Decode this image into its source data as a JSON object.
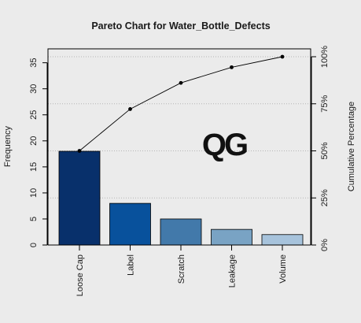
{
  "chart_data": {
    "type": "bar",
    "title": "Pareto Chart for Water_Bottle_Defects",
    "xlabel": "",
    "ylabel": "Frequency",
    "y2label": "Cumulative Percentage",
    "categories": [
      "Loose Cap",
      "Label",
      "Scratch",
      "Leakage",
      "Volume"
    ],
    "values": [
      18,
      8,
      5,
      3,
      2
    ],
    "cumulative_percent": [
      50,
      72.2,
      86.1,
      94.4,
      100
    ],
    "ylim": [
      0,
      37.5
    ],
    "yticks": [
      0,
      5,
      10,
      15,
      20,
      25,
      30,
      35
    ],
    "y2ticks": [
      0,
      25,
      50,
      75,
      100
    ],
    "y2tick_labels": [
      "0%",
      "25%",
      "50%",
      "75%",
      "100%"
    ],
    "grid": "horizontal dotted at right-axis ticks",
    "bar_colors": [
      "#08306b",
      "#08519c",
      "#4279aa",
      "#79a3c4",
      "#a7c3dc"
    ],
    "line_color": "#000000",
    "background": "#ebebeb"
  },
  "watermark": {
    "text": "QG"
  }
}
